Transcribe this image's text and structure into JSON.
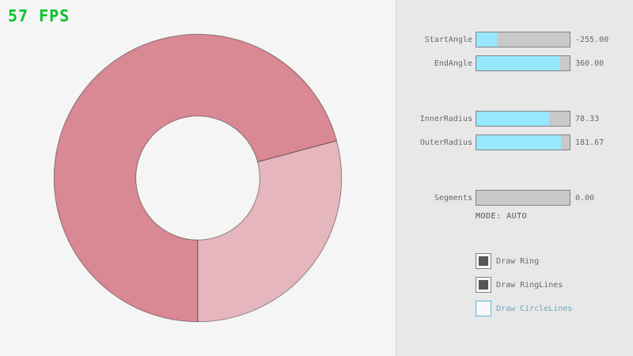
{
  "fps": {
    "label": "57 FPS"
  },
  "ring_params": {
    "start_angle": -255.0,
    "end_angle": 360.0,
    "inner_radius": 78.33,
    "outer_radius": 181.67,
    "segments": 0.0
  },
  "panel": {
    "sliders": [
      {
        "label": "StartAngle",
        "value": "-255.00",
        "fill_percent": 21.7
      },
      {
        "label": "EndAngle",
        "value": "360.00",
        "fill_percent": 90.0
      },
      {
        "label": "InnerRadius",
        "value": "78.33",
        "fill_percent": 78.3
      },
      {
        "label": "OuterRadius",
        "value": "181.67",
        "fill_percent": 90.8
      },
      {
        "label": "Segments",
        "value": "0.00",
        "fill_percent": 0
      }
    ],
    "mode_text": "MODE: AUTO",
    "checkboxes": [
      {
        "label": "Draw Ring",
        "checked": true
      },
      {
        "label": "Draw RingLines",
        "checked": true
      },
      {
        "label": "Draw CircleLines",
        "checked": false
      }
    ]
  },
  "colors": {
    "fps_green": "#00c42c",
    "ring_dark": "#d98994",
    "ring_light": "#e5b6bd",
    "ring_outline": "rgba(0,0,0,0.4)",
    "slider_fill_cyan": "#97e8ff",
    "slider_track": "#c9c9c9",
    "control_border": "#838383",
    "label_text": "#686868",
    "mode_text_color": "#505050",
    "focused_blue": "#5bb2d9",
    "focused_label_blue": "#6ba8c0",
    "panel_bg": "#e8e8e8",
    "page_bg": "#f5f5f5"
  }
}
